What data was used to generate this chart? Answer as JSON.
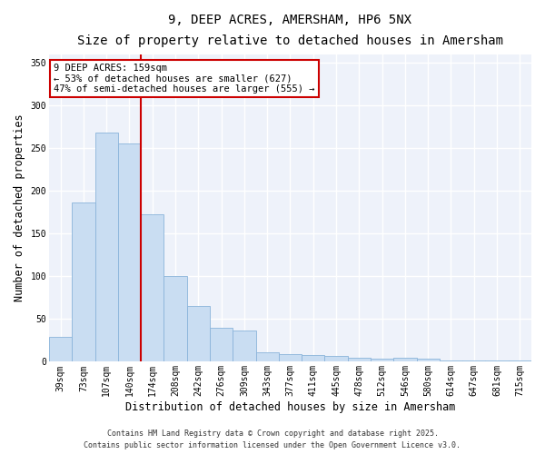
{
  "title": "9, DEEP ACRES, AMERSHAM, HP6 5NX",
  "subtitle": "Size of property relative to detached houses in Amersham",
  "xlabel": "Distribution of detached houses by size in Amersham",
  "ylabel": "Number of detached properties",
  "footer_line1": "Contains HM Land Registry data © Crown copyright and database right 2025.",
  "footer_line2": "Contains public sector information licensed under the Open Government Licence v3.0.",
  "categories": [
    "39sqm",
    "73sqm",
    "107sqm",
    "140sqm",
    "174sqm",
    "208sqm",
    "242sqm",
    "276sqm",
    "309sqm",
    "343sqm",
    "377sqm",
    "411sqm",
    "445sqm",
    "478sqm",
    "512sqm",
    "546sqm",
    "580sqm",
    "614sqm",
    "647sqm",
    "681sqm",
    "715sqm"
  ],
  "values": [
    29,
    187,
    268,
    256,
    173,
    100,
    65,
    40,
    37,
    11,
    9,
    8,
    7,
    5,
    4,
    5,
    4,
    2,
    1,
    1,
    2
  ],
  "bar_color": "#c9ddf2",
  "bar_edge_color": "#8ab4da",
  "vline_x_index": 3,
  "vline_color": "#cc0000",
  "annotation_line1": "9 DEEP ACRES: 159sqm",
  "annotation_line2": "← 53% of detached houses are smaller (627)",
  "annotation_line3": "47% of semi-detached houses are larger (555) →",
  "annotation_box_color": "#ffffff",
  "annotation_box_edge_color": "#cc0000",
  "ylim": [
    0,
    360
  ],
  "yticks": [
    0,
    50,
    100,
    150,
    200,
    250,
    300,
    350
  ],
  "background_color": "#eef2fa",
  "grid_color": "#ffffff",
  "title_fontsize": 10,
  "subtitle_fontsize": 9,
  "tick_fontsize": 7,
  "label_fontsize": 8.5,
  "footer_fontsize": 6,
  "annot_fontsize": 7.5
}
